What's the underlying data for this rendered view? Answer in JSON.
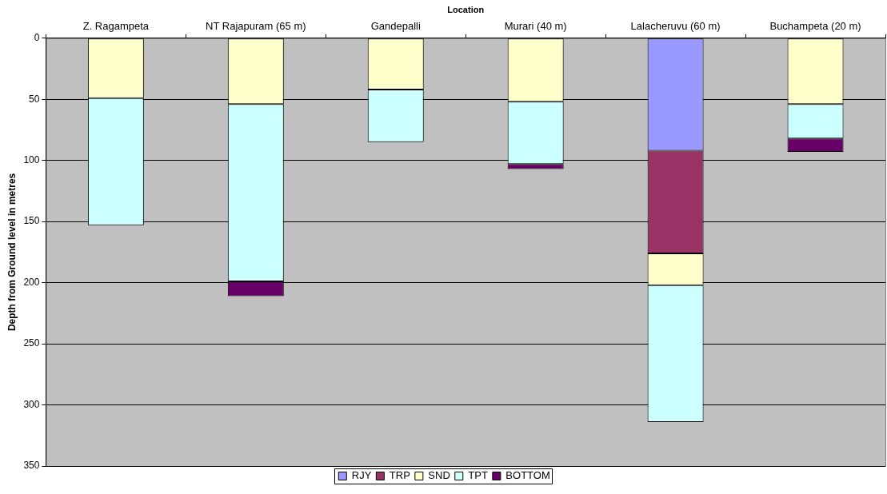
{
  "chart_data": {
    "type": "bar",
    "xlabel": "Location",
    "ylabel": "Depth from Ground level in metres",
    "categories": [
      "Z. Ragampeta",
      "NT Rajapuram (65 m)",
      "Gandepalli",
      "Murari (40 m)",
      "Lalacheruvu (60 m)",
      "Buchampeta (20 m)"
    ],
    "stacked": true,
    "series": [
      {
        "name": "RJY",
        "color": "#9999ff",
        "values": [
          null,
          null,
          null,
          null,
          92,
          null
        ]
      },
      {
        "name": "TRP",
        "color": "#993366",
        "values": [
          null,
          null,
          null,
          null,
          84,
          null
        ]
      },
      {
        "name": "SND",
        "color": "#ffffcc",
        "values": [
          49,
          54,
          42,
          52,
          26,
          54
        ]
      },
      {
        "name": "TPT",
        "color": "#ccffff",
        "values": [
          104,
          145,
          43,
          51,
          112,
          28
        ]
      },
      {
        "name": "BOTTOM",
        "color": "#660066",
        "values": [
          null,
          12,
          null,
          4,
          null,
          11
        ]
      }
    ],
    "ylim": [
      350,
      0
    ],
    "yticks": [
      0,
      50,
      100,
      150,
      200,
      250,
      300,
      350
    ],
    "grid": "y",
    "legend": "bottom"
  }
}
